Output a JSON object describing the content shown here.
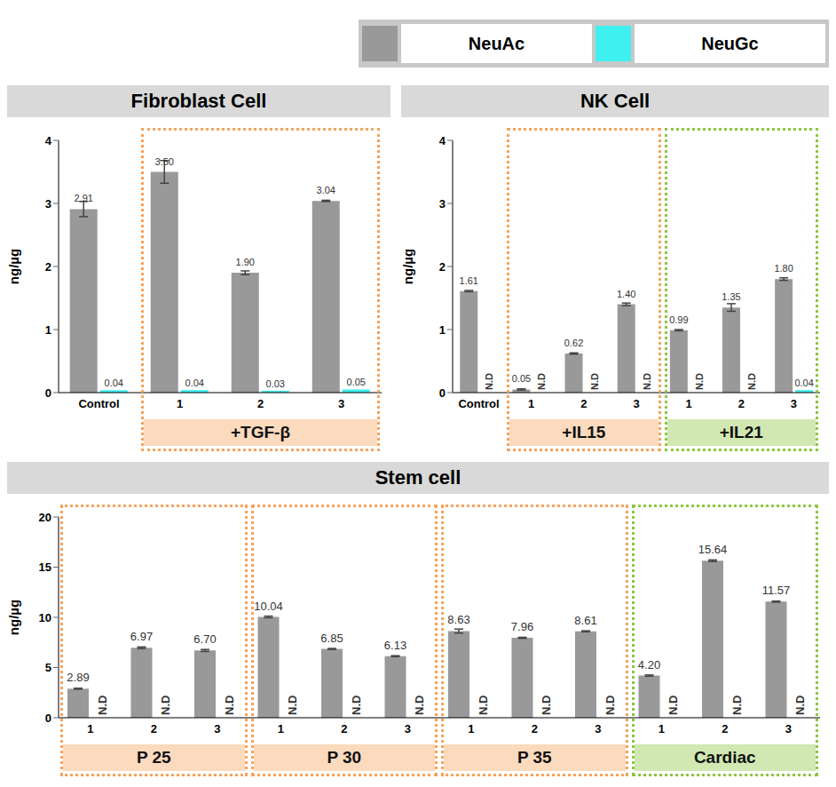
{
  "legend": "top right",
  "chart_data": [
    {
      "type": "bar",
      "title": "Fibroblast Cell",
      "y_label": "ng/µg",
      "categories": [
        "Control",
        "1",
        "2",
        "3"
      ],
      "groups": [
        {
          "label": null,
          "count": 1
        },
        {
          "label": "+TGF-β",
          "count": 3,
          "color": "#f5a35c"
        }
      ],
      "series": [
        {
          "name": "NeuAc",
          "color": "#999999",
          "values": [
            2.91,
            3.5,
            1.9,
            3.04
          ],
          "value_labels": [
            "2.91",
            "3.50",
            "1.90",
            "3.04"
          ],
          "errors": [
            0.12,
            0.18,
            0.03,
            0.01
          ]
        },
        {
          "name": "NeuGc",
          "color": "#3ff0f0",
          "values": [
            0.04,
            0.04,
            0.03,
            0.05
          ],
          "value_labels": [
            "0.04",
            "0.04",
            "0.03",
            "0.05"
          ]
        }
      ],
      "ylim": [
        0,
        4
      ],
      "yticks": [
        0,
        1,
        2,
        3,
        4
      ],
      "data_labels": true
    },
    {
      "type": "bar",
      "title": "NK Cell",
      "y_label": "ng/µg",
      "categories": [
        "Control",
        "1",
        "2",
        "3",
        "1",
        "2",
        "3"
      ],
      "groups": [
        {
          "label": null,
          "count": 1
        },
        {
          "label": "+IL15",
          "count": 3,
          "color": "#f5a35c"
        },
        {
          "label": "+IL21",
          "count": 3,
          "color": "#8dc63f"
        }
      ],
      "series": [
        {
          "name": "NeuAc",
          "color": "#999999",
          "values": [
            1.61,
            0.05,
            0.62,
            1.4,
            0.99,
            1.35,
            1.8
          ],
          "value_labels": [
            "1.61",
            "0.05",
            "0.62",
            "1.40",
            "0.99",
            "1.35",
            "1.80"
          ],
          "errors": [
            0.01,
            0.01,
            0.01,
            0.02,
            0.01,
            0.06,
            0.02
          ]
        },
        {
          "name": "NeuGc",
          "color": "#3ff0f0",
          "values": [
            null,
            null,
            null,
            null,
            null,
            null,
            0.04
          ],
          "value_labels": [
            "N.D",
            "N.D",
            "N.D",
            "N.D",
            "N.D",
            "N.D",
            "0.04"
          ]
        }
      ],
      "ylim": [
        0,
        4
      ],
      "yticks": [
        0,
        1,
        2,
        3,
        4
      ],
      "data_labels": true
    },
    {
      "type": "bar",
      "title": "Stem cell",
      "y_label": "ng/µg",
      "categories": [
        "1",
        "2",
        "3",
        "1",
        "2",
        "3",
        "1",
        "2",
        "3",
        "1",
        "2",
        "3"
      ],
      "groups": [
        {
          "label": "P 25",
          "count": 3,
          "color": "#f5a35c"
        },
        {
          "label": "P 30",
          "count": 3,
          "color": "#f5a35c"
        },
        {
          "label": "P 35",
          "count": 3,
          "color": "#f5a35c"
        },
        {
          "label": "Cardiac",
          "count": 3,
          "color": "#8dc63f"
        }
      ],
      "series": [
        {
          "name": "NeuAc",
          "color": "#999999",
          "values": [
            2.89,
            6.97,
            6.7,
            10.04,
            6.85,
            6.13,
            8.63,
            7.96,
            8.61,
            4.2,
            15.64,
            11.57
          ],
          "value_labels": [
            "2.89",
            "6.97",
            "6.70",
            "10.04",
            "6.85",
            "6.13",
            "8.63",
            "7.96",
            "8.61",
            "4.20",
            "15.64",
            "11.57"
          ],
          "errors": [
            0.05,
            0.08,
            0.1,
            0.08,
            0.05,
            0.05,
            0.2,
            0.05,
            0.05,
            0.06,
            0.08,
            0.05
          ]
        },
        {
          "name": "NeuGc",
          "color": "#3ff0f0",
          "values": [
            null,
            null,
            null,
            null,
            null,
            null,
            null,
            null,
            null,
            null,
            null,
            null
          ],
          "value_labels": [
            "N.D",
            "N.D",
            "N.D",
            "N.D",
            "N.D",
            "N.D",
            "N.D",
            "N.D",
            "N.D",
            "N.D",
            "N.D",
            "N.D"
          ]
        }
      ],
      "ylim": [
        0,
        20
      ],
      "yticks": [
        0,
        5,
        10,
        15,
        20
      ],
      "data_labels": true
    }
  ]
}
